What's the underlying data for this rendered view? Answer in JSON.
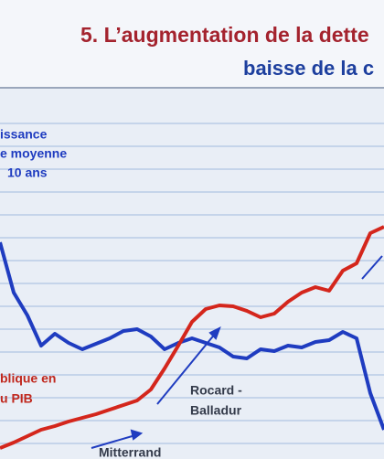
{
  "chart_data": {
    "type": "line",
    "title": "5. L’augmentation de la dette",
    "subtitle": "baisse de la c",
    "annotations": [
      "issance",
      "e moyenne",
      "10 ans",
      "blique en",
      "u PIB",
      "Rocard -",
      "Balladur",
      "Mitterrand"
    ],
    "x": [
      0,
      15,
      30,
      45,
      60,
      75,
      90,
      105,
      120,
      135,
      150,
      165,
      180,
      195,
      210,
      225,
      240,
      255,
      270,
      285,
      300,
      315,
      330,
      345,
      360,
      375,
      390,
      405,
      420
    ],
    "xlim": [
      0,
      420
    ],
    "ylim": [
      0,
      100
    ],
    "grid": true,
    "series": [
      {
        "color": "#1f3cc0",
        "values": [
          58.75,
          45,
          38.75,
          30.5,
          33.75,
          31.25,
          29.5,
          31,
          32.5,
          34.5,
          35,
          33,
          29.5,
          31.25,
          32.5,
          31.25,
          30,
          27.5,
          27,
          29.5,
          29,
          30.5,
          30,
          31.5,
          32,
          34.25,
          32.5,
          17.5,
          7.5
        ]
      },
      {
        "color": "#d4261c",
        "values": [
          2.5,
          4,
          5.75,
          7.5,
          8.5,
          9.75,
          10.75,
          11.75,
          13,
          14.25,
          15.5,
          18.5,
          24.25,
          30.5,
          37,
          40.5,
          41.5,
          41.25,
          40,
          38.25,
          39.25,
          42.5,
          45,
          46.5,
          45.5,
          51,
          53,
          61.25,
          63
        ]
      }
    ]
  }
}
